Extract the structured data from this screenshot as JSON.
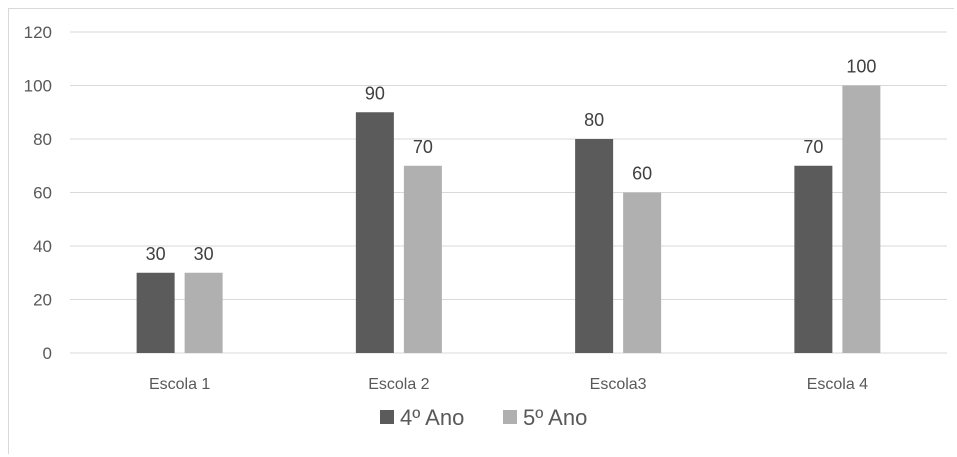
{
  "chart_data": {
    "type": "bar",
    "title": "",
    "xlabel": "",
    "ylabel": "",
    "categories": [
      "Escola 1",
      "Escola 2",
      "Escola3",
      "Escola 4"
    ],
    "series": [
      {
        "name": "4º Ano",
        "values": [
          30,
          90,
          80,
          70
        ],
        "color": "#5b5b5b"
      },
      {
        "name": "5º Ano",
        "values": [
          30,
          70,
          60,
          100
        ],
        "color": "#b0b0b0"
      }
    ],
    "ylim": [
      0,
      120
    ],
    "yticks": [
      0,
      20,
      40,
      60,
      80,
      100,
      120
    ],
    "grid": true,
    "legend": "bottom",
    "data_labels": true
  }
}
